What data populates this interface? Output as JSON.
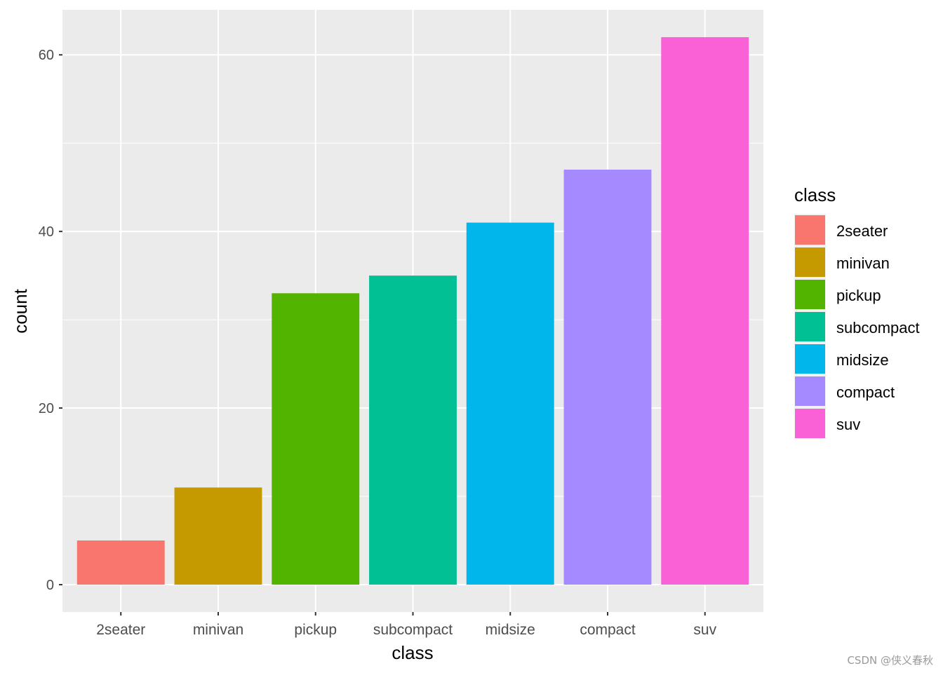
{
  "chart_data": {
    "type": "bar",
    "title": "",
    "xlabel": "class",
    "ylabel": "count",
    "categories": [
      "2seater",
      "minivan",
      "pickup",
      "subcompact",
      "midsize",
      "compact",
      "suv"
    ],
    "values": [
      5,
      11,
      33,
      35,
      41,
      47,
      62
    ],
    "colors": [
      "#F8766D",
      "#C49A00",
      "#53B400",
      "#00C094",
      "#00B6EB",
      "#A58AFF",
      "#FB61D7"
    ],
    "ylim": [
      -3.1,
      65.1
    ],
    "yticks": [
      0,
      20,
      40,
      60
    ],
    "yminor": [
      10,
      30,
      50
    ],
    "grid": true,
    "legend": {
      "title": "class",
      "position": "right",
      "entries": [
        "2seater",
        "minivan",
        "pickup",
        "subcompact",
        "midsize",
        "compact",
        "suv"
      ]
    },
    "panel_background": "#EBEBEB",
    "grid_color": "#FFFFFF"
  },
  "watermark": "CSDN @侠义春秋"
}
